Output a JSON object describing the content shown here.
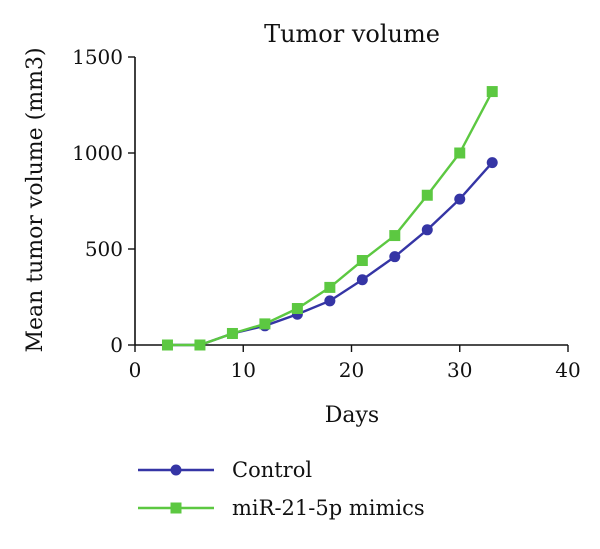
{
  "chart_data": {
    "type": "line",
    "title": "Tumor volume",
    "xlabel": "Days",
    "ylabel": "Mean tumor volume (mm3)",
    "xlim": [
      0,
      40
    ],
    "ylim": [
      0,
      1500
    ],
    "xticks": [
      0,
      10,
      20,
      30,
      40
    ],
    "yticks": [
      0,
      500,
      1000,
      1500
    ],
    "grid": false,
    "legend_position": "bottom-left",
    "series": [
      {
        "name": "Control",
        "color": "#3535a5",
        "marker": "circle",
        "x": [
          3,
          6,
          9,
          12,
          15,
          18,
          21,
          24,
          27,
          30,
          33
        ],
        "y": [
          0,
          0,
          60,
          100,
          160,
          230,
          340,
          460,
          600,
          760,
          950
        ]
      },
      {
        "name": "miR-21-5p mimics",
        "color": "#5cc841",
        "marker": "square",
        "x": [
          3,
          6,
          9,
          12,
          15,
          18,
          21,
          24,
          27,
          30,
          33
        ],
        "y": [
          0,
          0,
          60,
          110,
          190,
          300,
          440,
          570,
          780,
          1000,
          1320
        ]
      }
    ]
  }
}
